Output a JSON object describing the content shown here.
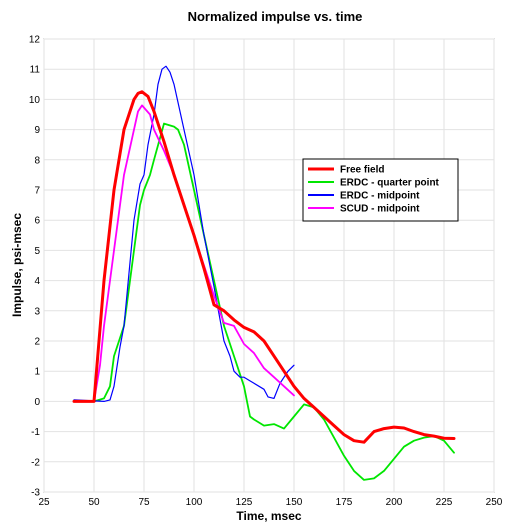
{
  "chart_data": {
    "type": "line",
    "title": "Normalized impulse vs. time",
    "xlabel": "Time, msec",
    "ylabel": "Impulse, psi-msec",
    "xlim": [
      25,
      250
    ],
    "ylim": [
      -3,
      12
    ],
    "xticks": [
      25,
      50,
      75,
      100,
      125,
      150,
      175,
      200,
      225,
      250
    ],
    "yticks": [
      -3,
      -2,
      -1,
      0,
      1,
      2,
      3,
      4,
      5,
      6,
      7,
      8,
      9,
      10,
      11,
      12
    ],
    "grid": true,
    "legend_position": "right",
    "series": [
      {
        "name": "Free field",
        "color": "#ff0000",
        "x": [
          40,
          47,
          50,
          55,
          60,
          65,
          70,
          72,
          74,
          77,
          80,
          85,
          90,
          95,
          100,
          105,
          110,
          115,
          120,
          125,
          130,
          135,
          140,
          145,
          150,
          155,
          160,
          165,
          170,
          175,
          180,
          185,
          190,
          195,
          200,
          205,
          210,
          215,
          220,
          225,
          230
        ],
        "y": [
          0,
          0,
          0,
          4,
          7,
          9,
          10,
          10.2,
          10.25,
          10.1,
          9.6,
          8.6,
          7.5,
          6.5,
          5.5,
          4.4,
          3.2,
          3.0,
          2.7,
          2.45,
          2.3,
          2.0,
          1.5,
          1.0,
          0.5,
          0.1,
          -0.2,
          -0.5,
          -0.8,
          -1.1,
          -1.3,
          -1.35,
          -1.0,
          -0.9,
          -0.85,
          -0.88,
          -1.0,
          -1.1,
          -1.15,
          -1.22,
          -1.23
        ]
      },
      {
        "name": "ERDC - quarter point",
        "color": "#00e600",
        "x": [
          40,
          50,
          55,
          58,
          60,
          65,
          70,
          73,
          75,
          78,
          80,
          85,
          90,
          92,
          95,
          100,
          105,
          110,
          115,
          120,
          125,
          128,
          130,
          135,
          140,
          145,
          150,
          155,
          160,
          165,
          170,
          175,
          180,
          185,
          190,
          195,
          200,
          205,
          210,
          215,
          220,
          225,
          230
        ],
        "y": [
          0,
          0,
          0.1,
          0.5,
          1.5,
          2.5,
          5,
          6.5,
          7,
          7.5,
          8,
          9.2,
          9.1,
          9.0,
          8.5,
          7.0,
          5.5,
          4.0,
          2.5,
          1.5,
          0.5,
          -0.5,
          -0.6,
          -0.8,
          -0.75,
          -0.9,
          -0.5,
          -0.1,
          -0.2,
          -0.6,
          -1.2,
          -1.8,
          -2.3,
          -2.6,
          -2.55,
          -2.3,
          -1.9,
          -1.5,
          -1.3,
          -1.2,
          -1.15,
          -1.3,
          -1.7
        ]
      },
      {
        "name": "ERDC - midpoint",
        "color": "#0000ff",
        "x": [
          40,
          55,
          58,
          60,
          63,
          65,
          70,
          73,
          75,
          77,
          80,
          82,
          84,
          86,
          88,
          90,
          95,
          100,
          105,
          110,
          115,
          118,
          120,
          123,
          125,
          130,
          135,
          137,
          140,
          143,
          147,
          150
        ],
        "y": [
          0.05,
          0,
          0.05,
          0.5,
          1.8,
          2.5,
          6.0,
          7.2,
          7.5,
          8.5,
          9.5,
          10.5,
          11.0,
          11.1,
          10.9,
          10.5,
          9.0,
          7.5,
          5.5,
          3.8,
          2.0,
          1.5,
          1.0,
          0.8,
          0.8,
          0.6,
          0.4,
          0.15,
          0.1,
          0.6,
          1.0,
          1.2
        ]
      },
      {
        "name": "SCUD - midpoint",
        "color": "#ff00ff",
        "x": [
          40,
          50,
          53,
          55,
          60,
          65,
          70,
          72,
          74,
          78,
          80,
          85,
          90,
          95,
          100,
          105,
          110,
          115,
          120,
          125,
          130,
          135,
          140,
          145,
          150
        ],
        "y": [
          0,
          0,
          1.2,
          2.5,
          5,
          7.5,
          9,
          9.6,
          9.8,
          9.5,
          9.0,
          8.3,
          7.5,
          6.5,
          5.5,
          4.5,
          3.5,
          2.6,
          2.5,
          1.9,
          1.6,
          1.1,
          0.8,
          0.5,
          0.2
        ]
      }
    ]
  }
}
